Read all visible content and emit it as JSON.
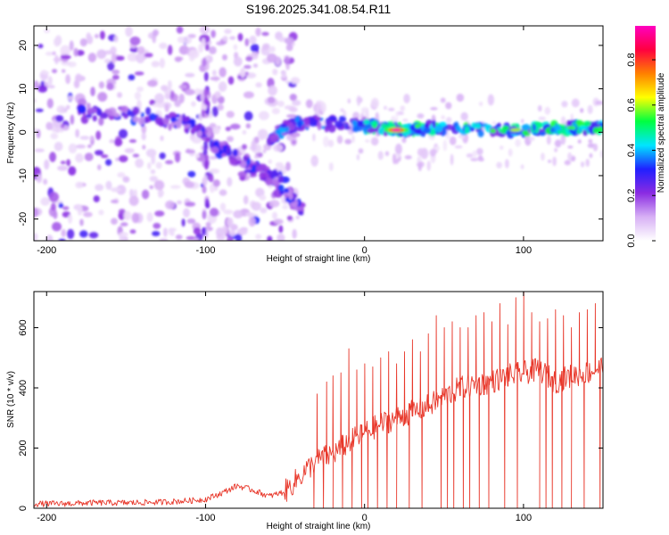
{
  "title": "S196.2025.341.08.54.R11",
  "chart_data": [
    {
      "type": "heatmap",
      "title": "S196.2025.341.08.54.R11",
      "xlabel": "Height of straight line (km)",
      "ylabel": "Frequency (Hz)",
      "xlim": [
        -208,
        150
      ],
      "ylim": [
        -25,
        24.5
      ],
      "xticks": [
        -200,
        -100,
        0,
        100
      ],
      "yticks": [
        -20,
        -10,
        0,
        10,
        20
      ],
      "colorbar": {
        "label": "Normalized spectral amplitude",
        "range": [
          0.0,
          0.95
        ],
        "ticks": [
          0.0,
          0.2,
          0.4,
          0.6,
          0.8
        ],
        "colormap": [
          "#ffffff",
          "#d7b0f5",
          "#8a2be2",
          "#2020ff",
          "#00e5ff",
          "#00ff40",
          "#ffff00",
          "#ff8000",
          "#ff0040",
          "#ff00c0"
        ]
      },
      "features": [
        {
          "name": "scattered noise",
          "x_range": [
            -208,
            -40
          ],
          "y_range": [
            -25,
            24
          ]
        },
        {
          "name": "descending branch",
          "points": [
            [
              -180,
              5
            ],
            [
              -150,
              4
            ],
            [
              -120,
              3
            ],
            [
              -105,
              1
            ],
            [
              -95,
              -3
            ],
            [
              -80,
              -6
            ],
            [
              -65,
              -9
            ],
            [
              -55,
              -11
            ],
            [
              -40,
              -18
            ]
          ]
        },
        {
          "name": "upper branch",
          "points": [
            [
              -60,
              -2
            ],
            [
              -50,
              1
            ],
            [
              -40,
              2
            ],
            [
              -20,
              2
            ],
            [
              0,
              1.5
            ]
          ]
        },
        {
          "name": "steady ridge",
          "points": [
            [
              0,
              1.5
            ],
            [
              20,
              0.5
            ],
            [
              50,
              1
            ],
            [
              100,
              0.5
            ],
            [
              130,
              1
            ],
            [
              150,
              1
            ]
          ]
        },
        {
          "name": "peak",
          "x": 20,
          "y": 0.5,
          "amplitude": 0.95
        }
      ]
    },
    {
      "type": "line",
      "xlabel": "Height of straight line (km)",
      "ylabel": "SNR (10 * v/v)",
      "xlim": [
        -208,
        150
      ],
      "ylim": [
        0,
        720
      ],
      "xticks": [
        -200,
        -100,
        0,
        100
      ],
      "yticks": [
        0,
        200,
        400,
        600
      ],
      "series": [
        {
          "name": "SNR",
          "color": "#e8372a",
          "x": [
            -208,
            -190,
            -170,
            -150,
            -130,
            -110,
            -100,
            -90,
            -80,
            -70,
            -60,
            -50,
            -40,
            -30,
            -20,
            -10,
            0,
            10,
            20,
            30,
            40,
            50,
            60,
            70,
            80,
            90,
            100,
            110,
            120,
            130,
            140,
            150
          ],
          "values": [
            15,
            15,
            18,
            18,
            20,
            25,
            30,
            50,
            75,
            60,
            40,
            55,
            110,
            160,
            180,
            220,
            250,
            280,
            300,
            320,
            340,
            370,
            400,
            410,
            420,
            440,
            450,
            460,
            420,
            440,
            450,
            470
          ],
          "spikes": [
            {
              "x": -30,
              "y": 380
            },
            {
              "x": -24,
              "y": 420
            },
            {
              "x": -20,
              "y": 440
            },
            {
              "x": -15,
              "y": 450
            },
            {
              "x": -10,
              "y": 530
            },
            {
              "x": -5,
              "y": 460
            },
            {
              "x": 0,
              "y": 480
            },
            {
              "x": 5,
              "y": 470
            },
            {
              "x": 10,
              "y": 500
            },
            {
              "x": 15,
              "y": 520
            },
            {
              "x": 20,
              "y": 480
            },
            {
              "x": 25,
              "y": 520
            },
            {
              "x": 30,
              "y": 560
            },
            {
              "x": 35,
              "y": 520
            },
            {
              "x": 40,
              "y": 580
            },
            {
              "x": 45,
              "y": 640
            },
            {
              "x": 50,
              "y": 600
            },
            {
              "x": 55,
              "y": 620
            },
            {
              "x": 60,
              "y": 600
            },
            {
              "x": 65,
              "y": 600
            },
            {
              "x": 70,
              "y": 640
            },
            {
              "x": 75,
              "y": 650
            },
            {
              "x": 80,
              "y": 620
            },
            {
              "x": 85,
              "y": 680
            },
            {
              "x": 90,
              "y": 610
            },
            {
              "x": 95,
              "y": 700
            },
            {
              "x": 100,
              "y": 720
            },
            {
              "x": 105,
              "y": 650
            },
            {
              "x": 110,
              "y": 620
            },
            {
              "x": 115,
              "y": 630
            },
            {
              "x": 120,
              "y": 660
            },
            {
              "x": 125,
              "y": 640
            },
            {
              "x": 130,
              "y": 600
            },
            {
              "x": 135,
              "y": 650
            },
            {
              "x": 140,
              "y": 660
            },
            {
              "x": 145,
              "y": 680
            },
            {
              "x": 150,
              "y": 670
            }
          ],
          "dropouts": [
            -32,
            -26,
            -20,
            -14,
            -8,
            -2,
            2,
            8,
            14,
            20,
            28,
            36,
            48,
            52,
            56,
            62,
            66,
            72,
            78,
            88,
            96,
            110,
            114,
            118,
            124,
            130,
            138,
            148
          ]
        }
      ]
    }
  ]
}
